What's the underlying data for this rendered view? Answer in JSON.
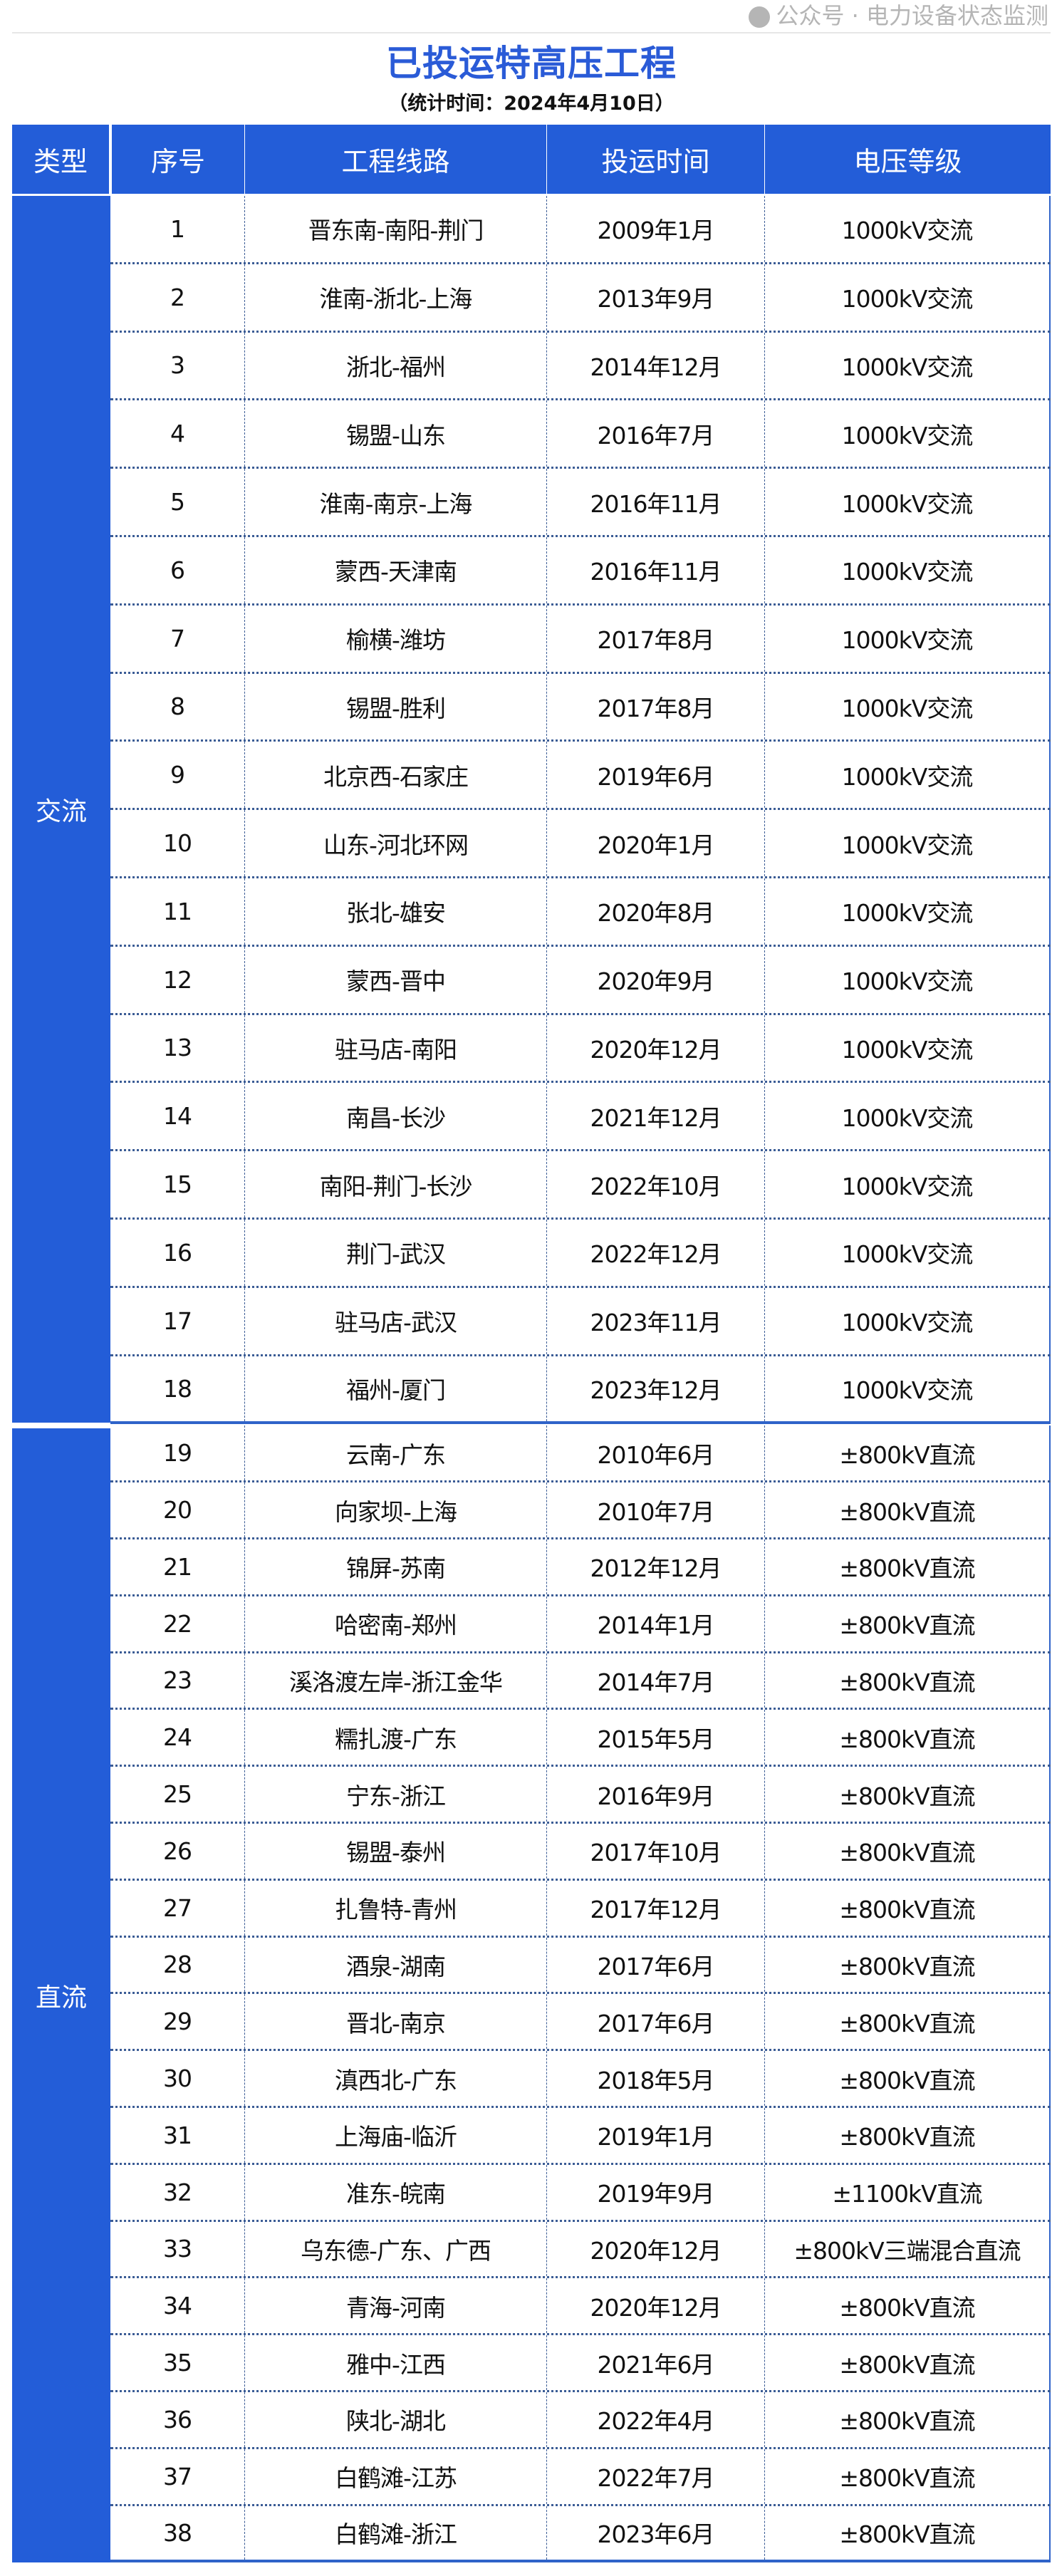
{
  "title": "已投运特高压工程",
  "subtitle": "（统计时间：2024年4月10日）",
  "colors": {
    "accent": "#235dd8",
    "title": "#2a5bd7"
  },
  "headers": [
    "类型",
    "序号",
    "工程线路",
    "投运时间",
    "电压等级"
  ],
  "groups": [
    {
      "type": "交流",
      "rows": [
        [
          "1",
          "晋东南-南阳-荆门",
          "2009年1月",
          "1000kV交流"
        ],
        [
          "2",
          "淮南-浙北-上海",
          "2013年9月",
          "1000kV交流"
        ],
        [
          "3",
          "浙北-福州",
          "2014年12月",
          "1000kV交流"
        ],
        [
          "4",
          "锡盟-山东",
          "2016年7月",
          "1000kV交流"
        ],
        [
          "5",
          "淮南-南京-上海",
          "2016年11月",
          "1000kV交流"
        ],
        [
          "6",
          "蒙西-天津南",
          "2016年11月",
          "1000kV交流"
        ],
        [
          "7",
          "榆横-潍坊",
          "2017年8月",
          "1000kV交流"
        ],
        [
          "8",
          "锡盟-胜利",
          "2017年8月",
          "1000kV交流"
        ],
        [
          "9",
          "北京西-石家庄",
          "2019年6月",
          "1000kV交流"
        ],
        [
          "10",
          "山东-河北环网",
          "2020年1月",
          "1000kV交流"
        ],
        [
          "11",
          "张北-雄安",
          "2020年8月",
          "1000kV交流"
        ],
        [
          "12",
          "蒙西-晋中",
          "2020年9月",
          "1000kV交流"
        ],
        [
          "13",
          "驻马店-南阳",
          "2020年12月",
          "1000kV交流"
        ],
        [
          "14",
          "南昌-长沙",
          "2021年12月",
          "1000kV交流"
        ],
        [
          "15",
          "南阳-荆门-长沙",
          "2022年10月",
          "1000kV交流"
        ],
        [
          "16",
          "荆门-武汉",
          "2022年12月",
          "1000kV交流"
        ],
        [
          "17",
          "驻马店-武汉",
          "2023年11月",
          "1000kV交流"
        ],
        [
          "18",
          "福州-厦门",
          "2023年12月",
          "1000kV交流"
        ]
      ]
    },
    {
      "type": "直流",
      "rows": [
        [
          "19",
          "云南-广东",
          "2010年6月",
          "±800kV直流"
        ],
        [
          "20",
          "向家坝-上海",
          "2010年7月",
          "±800kV直流"
        ],
        [
          "21",
          "锦屏-苏南",
          "2012年12月",
          "±800kV直流"
        ],
        [
          "22",
          "哈密南-郑州",
          "2014年1月",
          "±800kV直流"
        ],
        [
          "23",
          "溪洛渡左岸-浙江金华",
          "2014年7月",
          "±800kV直流"
        ],
        [
          "24",
          "糯扎渡-广东",
          "2015年5月",
          "±800kV直流"
        ],
        [
          "25",
          "宁东-浙江",
          "2016年9月",
          "±800kV直流"
        ],
        [
          "26",
          "锡盟-泰州",
          "2017年10月",
          "±800kV直流"
        ],
        [
          "27",
          "扎鲁特-青州",
          "2017年12月",
          "±800kV直流"
        ],
        [
          "28",
          "酒泉-湖南",
          "2017年6月",
          "±800kV直流"
        ],
        [
          "29",
          "晋北-南京",
          "2017年6月",
          "±800kV直流"
        ],
        [
          "30",
          "滇西北-广东",
          "2018年5月",
          "±800kV直流"
        ],
        [
          "31",
          "上海庙-临沂",
          "2019年1月",
          "±800kV直流"
        ],
        [
          "32",
          "准东-皖南",
          "2019年9月",
          "±1100kV直流"
        ],
        [
          "33",
          "乌东德-广东、广西",
          "2020年12月",
          "±800kV三端混合直流"
        ],
        [
          "34",
          "青海-河南",
          "2020年12月",
          "±800kV直流"
        ],
        [
          "35",
          "雅中-江西",
          "2021年6月",
          "±800kV直流"
        ],
        [
          "36",
          "陕北-湖北",
          "2022年4月",
          "±800kV直流"
        ],
        [
          "37",
          "白鹤滩-江苏",
          "2022年7月",
          "±800kV直流"
        ],
        [
          "38",
          "白鹤滩-浙江",
          "2023年6月",
          "±800kV直流"
        ]
      ]
    }
  ],
  "watermark": "公众号 · 电力设备状态监测"
}
